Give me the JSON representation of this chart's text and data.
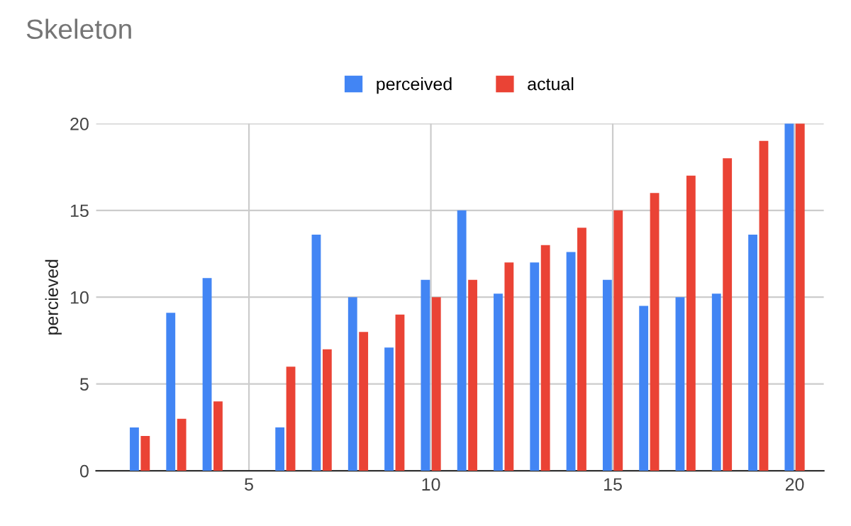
{
  "chart_data": {
    "type": "bar",
    "title": "Skeleton",
    "ylabel": "percieved",
    "x": [
      2,
      3,
      4,
      5,
      6,
      7,
      8,
      9,
      10,
      11,
      12,
      13,
      14,
      15,
      16,
      17,
      18,
      19,
      20
    ],
    "series": [
      {
        "name": "perceived",
        "color": "#4285f4",
        "values": [
          2.5,
          9.1,
          11.1,
          null,
          2.5,
          13.6,
          10,
          7.1,
          11,
          15,
          10.2,
          12,
          12.6,
          11,
          9.5,
          10,
          10.2,
          13.6,
          20
        ]
      },
      {
        "name": "actual",
        "color": "#ea4335",
        "values": [
          2,
          3,
          4,
          null,
          6,
          7,
          8,
          9,
          10,
          11,
          12,
          13,
          14,
          15,
          16,
          17,
          18,
          19,
          20
        ]
      }
    ],
    "xlim": [
      0.8,
      20.8
    ],
    "xticks": [
      5,
      10,
      15,
      20
    ],
    "ylim": [
      0,
      20
    ],
    "yticks": [
      0,
      5,
      10,
      15,
      20
    ],
    "grid": true,
    "legend": "top"
  }
}
